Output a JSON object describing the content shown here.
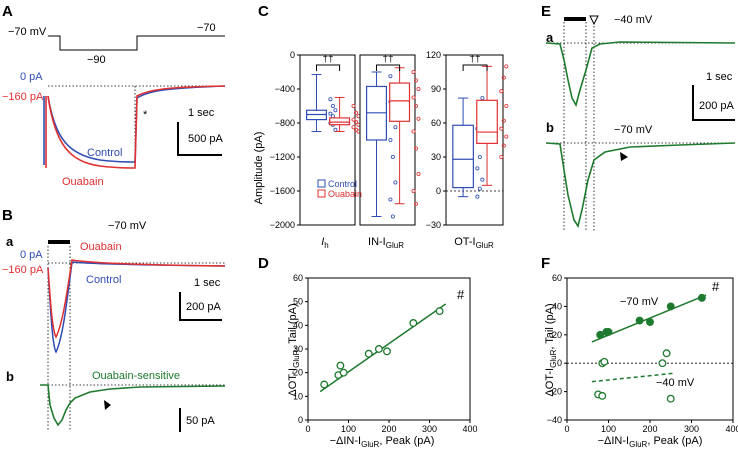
{
  "panels": {
    "A": {
      "label": "A",
      "v_hold": "−70 mV",
      "v_step": "−90",
      "v_end": "−70",
      "i_zero": "0 pA",
      "i_hold": "−160 pA",
      "asterisk": "*",
      "scale_time": "1 sec",
      "scale_current": "500 pA",
      "legend_control": "Control",
      "legend_ouabain": "Ouabain"
    },
    "B": {
      "label": "B",
      "sub_a": "a",
      "sub_b": "b",
      "v_hold": "−70 mV",
      "i_zero": "0 pA",
      "i_hold": "−160 pA",
      "legend_ouabain": "Ouabain",
      "legend_control": "Control",
      "legend_sensitive": "Ouabain-sensitive",
      "scale_time": "1 sec",
      "scale_current_a": "200 pA",
      "scale_current_b": "50 pA"
    },
    "C": {
      "label": "C",
      "ylabel": "Amplitude (pA)",
      "group1": "I",
      "group1_sub": "h",
      "group2": "IN-I",
      "group2_sub": "GluR",
      "group3": "OT-I",
      "group3_sub": "GluR",
      "sig": "††",
      "legend_control": "Control",
      "legend_ouabain": "Ouabain"
    },
    "D": {
      "label": "D",
      "marker": "#"
    },
    "E": {
      "label": "E",
      "sub_a": "a",
      "sub_b": "b",
      "v_a": "−40 mV",
      "v_b": "−70 mV",
      "scale_time": "1 sec",
      "scale_current": "200 pA"
    },
    "F": {
      "label": "F",
      "marker": "#",
      "v_filled": "−70 mV",
      "v_open": "−40 mV"
    }
  },
  "chart_data": [
    {
      "panel": "C1",
      "type": "box",
      "title": "Ih",
      "ylabel": "Amplitude (pA)",
      "ylim": [
        -2000,
        0
      ],
      "yticks": [
        0,
        -400,
        -800,
        -1200,
        -1600,
        -2000
      ],
      "series": [
        {
          "name": "Control",
          "color": "#2f4db5",
          "q1": -760,
          "median": -700,
          "q3": -650,
          "whisker_lo": -900,
          "whisker_hi": -230,
          "points": [
            -520,
            -600,
            -650,
            -690,
            -720,
            -760,
            -800,
            -820,
            -880
          ]
        },
        {
          "name": "Ouabain",
          "color": "#e03030",
          "q1": -820,
          "median": -790,
          "q3": -740,
          "whisker_lo": -900,
          "whisker_hi": -500,
          "points": [
            -600,
            -680,
            -720,
            -760,
            -790,
            -820,
            -850,
            -880,
            -900
          ]
        }
      ]
    },
    {
      "panel": "C2",
      "type": "box",
      "title": "IN-IGluR",
      "ylim": [
        -2000,
        0
      ],
      "series": [
        {
          "name": "Control",
          "color": "#2f4db5",
          "q1": -1000,
          "median": -680,
          "q3": -370,
          "whisker_lo": -1900,
          "whisker_hi": -200,
          "points": [
            -250,
            -350,
            -450,
            -550,
            -680,
            -850,
            -1000,
            -1200,
            -1500,
            -1700,
            -1900
          ]
        },
        {
          "name": "Ouabain",
          "color": "#e03030",
          "q1": -780,
          "median": -540,
          "q3": -330,
          "whisker_lo": -1750,
          "whisker_hi": -150,
          "points": [
            -200,
            -300,
            -400,
            -500,
            -600,
            -750,
            -900,
            -1100,
            -1400,
            -1600,
            -1750
          ]
        }
      ]
    },
    {
      "panel": "C3",
      "type": "box",
      "title": "OT-IGluR",
      "ylim": [
        -30,
        120
      ],
      "yticks": [
        120,
        90,
        60,
        30,
        0,
        -30
      ],
      "series": [
        {
          "name": "Control",
          "color": "#2f4db5",
          "q1": 3,
          "median": 28,
          "q3": 58,
          "whisker_lo": -5,
          "whisker_hi": 82,
          "points": [
            -5,
            2,
            10,
            20,
            30,
            45,
            55,
            70,
            82
          ]
        },
        {
          "name": "Ouabain",
          "color": "#e03030",
          "q1": 42,
          "median": 52,
          "q3": 80,
          "whisker_lo": 5,
          "whisker_hi": 110,
          "points": [
            30,
            40,
            48,
            55,
            62,
            75,
            88,
            100,
            110
          ]
        }
      ]
    },
    {
      "panel": "D",
      "type": "scatter",
      "xlabel": "−ΔIN-IGluR, Peak (pA)",
      "ylabel": "ΔOT-IGluR, Tail (pA)",
      "xlim": [
        0,
        400
      ],
      "ylim": [
        0,
        60
      ],
      "xticks": [
        0,
        100,
        200,
        300,
        400
      ],
      "yticks": [
        0,
        10,
        20,
        30,
        40,
        50,
        60
      ],
      "points": [
        [
          40,
          15
        ],
        [
          75,
          19
        ],
        [
          80,
          23
        ],
        [
          88,
          20
        ],
        [
          150,
          28
        ],
        [
          175,
          30
        ],
        [
          195,
          29
        ],
        [
          260,
          41
        ],
        [
          325,
          46
        ]
      ],
      "fit": [
        [
          30,
          12
        ],
        [
          340,
          49
        ]
      ]
    },
    {
      "panel": "F",
      "type": "scatter",
      "xlabel": "−ΔIN-IGluR, Peak (pA)",
      "ylabel": "ΔOT-IGluR, Tail (pA)",
      "xlim": [
        0,
        400
      ],
      "ylim": [
        -40,
        60
      ],
      "xticks": [
        0,
        100,
        200,
        300,
        400
      ],
      "yticks": [
        60,
        40,
        20,
        0,
        -20,
        -40
      ],
      "series": [
        {
          "name": "−70 mV",
          "filled": true,
          "points": [
            [
              80,
              20
            ],
            [
              95,
              22
            ],
            [
              100,
              22
            ],
            [
              175,
              30
            ],
            [
              200,
              29
            ],
            [
              250,
              40
            ],
            [
              325,
              46
            ]
          ],
          "fit": [
            [
              60,
              15
            ],
            [
              335,
              48
            ]
          ]
        },
        {
          "name": "−40 mV",
          "filled": false,
          "points": [
            [
              75,
              -22
            ],
            [
              85,
              -23
            ],
            [
              85,
              0
            ],
            [
              90,
              1
            ],
            [
              230,
              0
            ],
            [
              240,
              7
            ],
            [
              250,
              -25
            ]
          ],
          "fit": [
            [
              60,
              -13
            ],
            [
              260,
              -7
            ]
          ]
        }
      ]
    }
  ]
}
